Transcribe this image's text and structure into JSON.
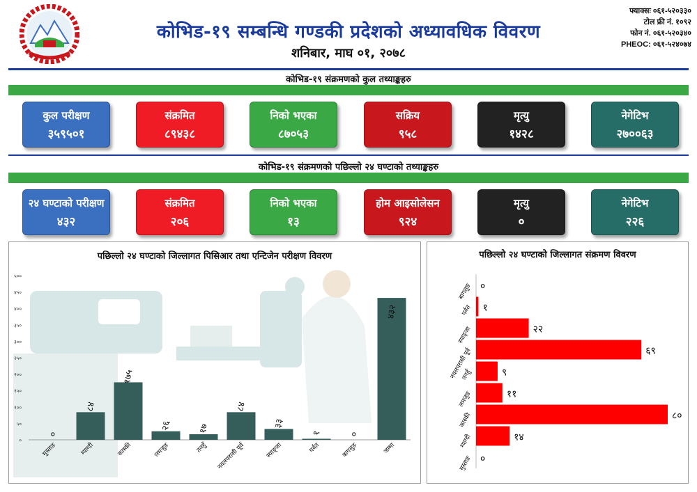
{
  "header": {
    "title": "कोभिड-१९ सम्बन्धि गण्डकी प्रदेशको अध्यावधिक विवरण",
    "date": "शनिबार, माघ ०१, २०७८",
    "contacts": [
      "फ्याक्सः ०६१-५२०३३०",
      "टोल फ्री नं. १०९२",
      "फोन नं. ०६१-५२०३४०",
      "PHEOC: ०६१-५२४०७४"
    ]
  },
  "colors": {
    "blue": "#3b6fc0",
    "red": "#ef1c25",
    "green": "#3aa845",
    "dark_red": "#c8181e",
    "black": "#222222",
    "teal": "#266d67",
    "header_blue": "#1a3b9c",
    "bar_dark": "#355e5b",
    "bar_red": "#ff0000"
  },
  "totals": {
    "title": "कोभिड-१९ संक्रमणको कुल तथ्याङ्कहरु",
    "cards": [
      {
        "label": "कुल परीक्षण",
        "value": "३५९५०१",
        "color": "blue"
      },
      {
        "label": "संक्रमित",
        "value": "८९४३८",
        "color": "red"
      },
      {
        "label": "निको भएका",
        "value": "८७०५३",
        "color": "green"
      },
      {
        "label": "सक्रिय",
        "value": "९५८",
        "color": "dark_red"
      },
      {
        "label": "मृत्यु",
        "value": "१४२८",
        "color": "black"
      },
      {
        "label": "नेगेटिभ",
        "value": "२७००६३",
        "color": "teal"
      }
    ]
  },
  "last24": {
    "title": "कोभिड-१९ संक्रमणको पछिल्लो २४ घण्टाको तथ्याङ्कहरु",
    "cards": [
      {
        "label": "२४ घण्टाको परीक्षण",
        "value": "४३२",
        "color": "blue"
      },
      {
        "label": "संक्रमित",
        "value": "२०६",
        "color": "red"
      },
      {
        "label": "निको भएका",
        "value": "१३",
        "color": "green"
      },
      {
        "label": "होम आइसोलेसन",
        "value": "९२४",
        "color": "dark_red"
      },
      {
        "label": "मृत्यु",
        "value": "०",
        "color": "black"
      },
      {
        "label": "नेगेटिभ",
        "value": "२२६",
        "color": "teal"
      }
    ]
  },
  "chart_data": [
    {
      "type": "bar",
      "title": "पछिल्लो २४ घण्टाको जिल्लागत पिसिआर तथा एन्टिजेन परीक्षण विवरण",
      "categories": [
        "मुस्ताङ",
        "म्याग्दी",
        "कास्की",
        "लमजुङ",
        "तनहुँ",
        "नवलपरासी पूर्व",
        "स्याङ्जा",
        "पर्वत",
        "बागलुङ",
        "जम्मा"
      ],
      "values": [
        0,
        84,
        175,
        26,
        17,
        84,
        33,
        1,
        0,
        432
      ],
      "value_labels": [
        "०",
        "८४",
        "१७५",
        "२६",
        "१७",
        "८४",
        "३३",
        "१",
        "०",
        "४३२"
      ],
      "y_ticks": [
        "०",
        "५०",
        "१००",
        "१५०",
        "२००",
        "२५०",
        "३००",
        "३५०",
        "४००",
        "४५०",
        "५००"
      ],
      "ylim": [
        0,
        500
      ]
    },
    {
      "type": "bar",
      "orientation": "horizontal",
      "title": "पछिल्लो २४ घण्टाको जिल्लागत संक्रमण विवरण",
      "categories": [
        "बागलुङ",
        "पर्वत",
        "स्याङ्जा",
        "नवलपरासी पूर्व",
        "तनहुँ",
        "लमजुङ",
        "कास्की",
        "म्याग्दी",
        "मुस्ताङ"
      ],
      "values": [
        0,
        1,
        22,
        69,
        9,
        11,
        80,
        14,
        0
      ],
      "value_labels": [
        "०",
        "१",
        "२२",
        "६९",
        "९",
        "११",
        "८०",
        "१४",
        "०"
      ],
      "xlim": [
        0,
        80
      ]
    }
  ]
}
